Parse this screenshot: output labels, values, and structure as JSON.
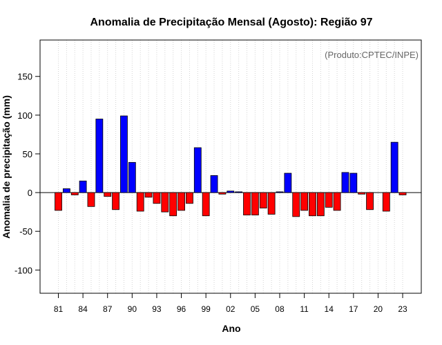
{
  "chart_data": {
    "type": "bar",
    "title": "Anomalia de Precipitação Mensal (Agosto): Região 97",
    "xlabel": "Ano",
    "ylabel": "Anomalia de precipitação (mm)",
    "annotation": "(Produto:CPTEC/INPE)",
    "ylim": [
      -130,
      197
    ],
    "yticks": [
      -100,
      -50,
      0,
      50,
      100,
      150
    ],
    "ytick_labels": [
      "-100",
      "-50",
      "0",
      "50",
      "100",
      "150"
    ],
    "grid": true,
    "positive_color": "#0000ff",
    "negative_color": "#ff0000",
    "x_tick_labels": [
      "81",
      "84",
      "87",
      "90",
      "93",
      "96",
      "99",
      "02",
      "05",
      "08",
      "11",
      "14",
      "17",
      "20",
      "23"
    ],
    "categories": [
      "1981",
      "1982",
      "1983",
      "1984",
      "1985",
      "1986",
      "1987",
      "1988",
      "1989",
      "1990",
      "1991",
      "1992",
      "1993",
      "1994",
      "1995",
      "1996",
      "1997",
      "1998",
      "1999",
      "2000",
      "2001",
      "2002",
      "2003",
      "2004",
      "2005",
      "2006",
      "2007",
      "2008",
      "2009",
      "2010",
      "2011",
      "2012",
      "2013",
      "2014",
      "2015",
      "2016",
      "2017",
      "2018",
      "2019",
      "2020",
      "2021",
      "2022",
      "2023"
    ],
    "values": [
      -23,
      5,
      -3,
      15,
      -18,
      95,
      -5,
      -22,
      99,
      39,
      -24,
      -6,
      -14,
      -25,
      -30,
      -23,
      -14,
      58,
      -30,
      22,
      -2,
      2,
      1,
      -29,
      -29,
      -20,
      -28,
      1,
      25,
      -31,
      -23,
      -30,
      -30,
      -19,
      -23,
      26,
      25,
      -2,
      -22,
      0,
      -24,
      65,
      -3
    ]
  }
}
